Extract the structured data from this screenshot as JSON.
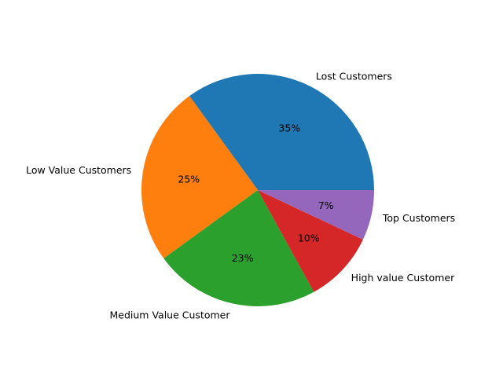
{
  "chart_data": {
    "type": "pie",
    "title": "",
    "start_angle_deg": 0,
    "direction": "counterclockwise",
    "slices": [
      {
        "label": "Lost Customers",
        "value": 35,
        "pct_label": "35%",
        "color": "#1f77b4"
      },
      {
        "label": "Low Value Customers",
        "value": 25,
        "pct_label": "25%",
        "color": "#ff7f0e"
      },
      {
        "label": "Medium Value Customer",
        "value": 23,
        "pct_label": "23%",
        "color": "#2ca02c"
      },
      {
        "label": "High value Customer",
        "value": 10,
        "pct_label": "10%",
        "color": "#d62728"
      },
      {
        "label": "Top Customers",
        "value": 7,
        "pct_label": "7%",
        "color": "#9467bd"
      }
    ]
  }
}
